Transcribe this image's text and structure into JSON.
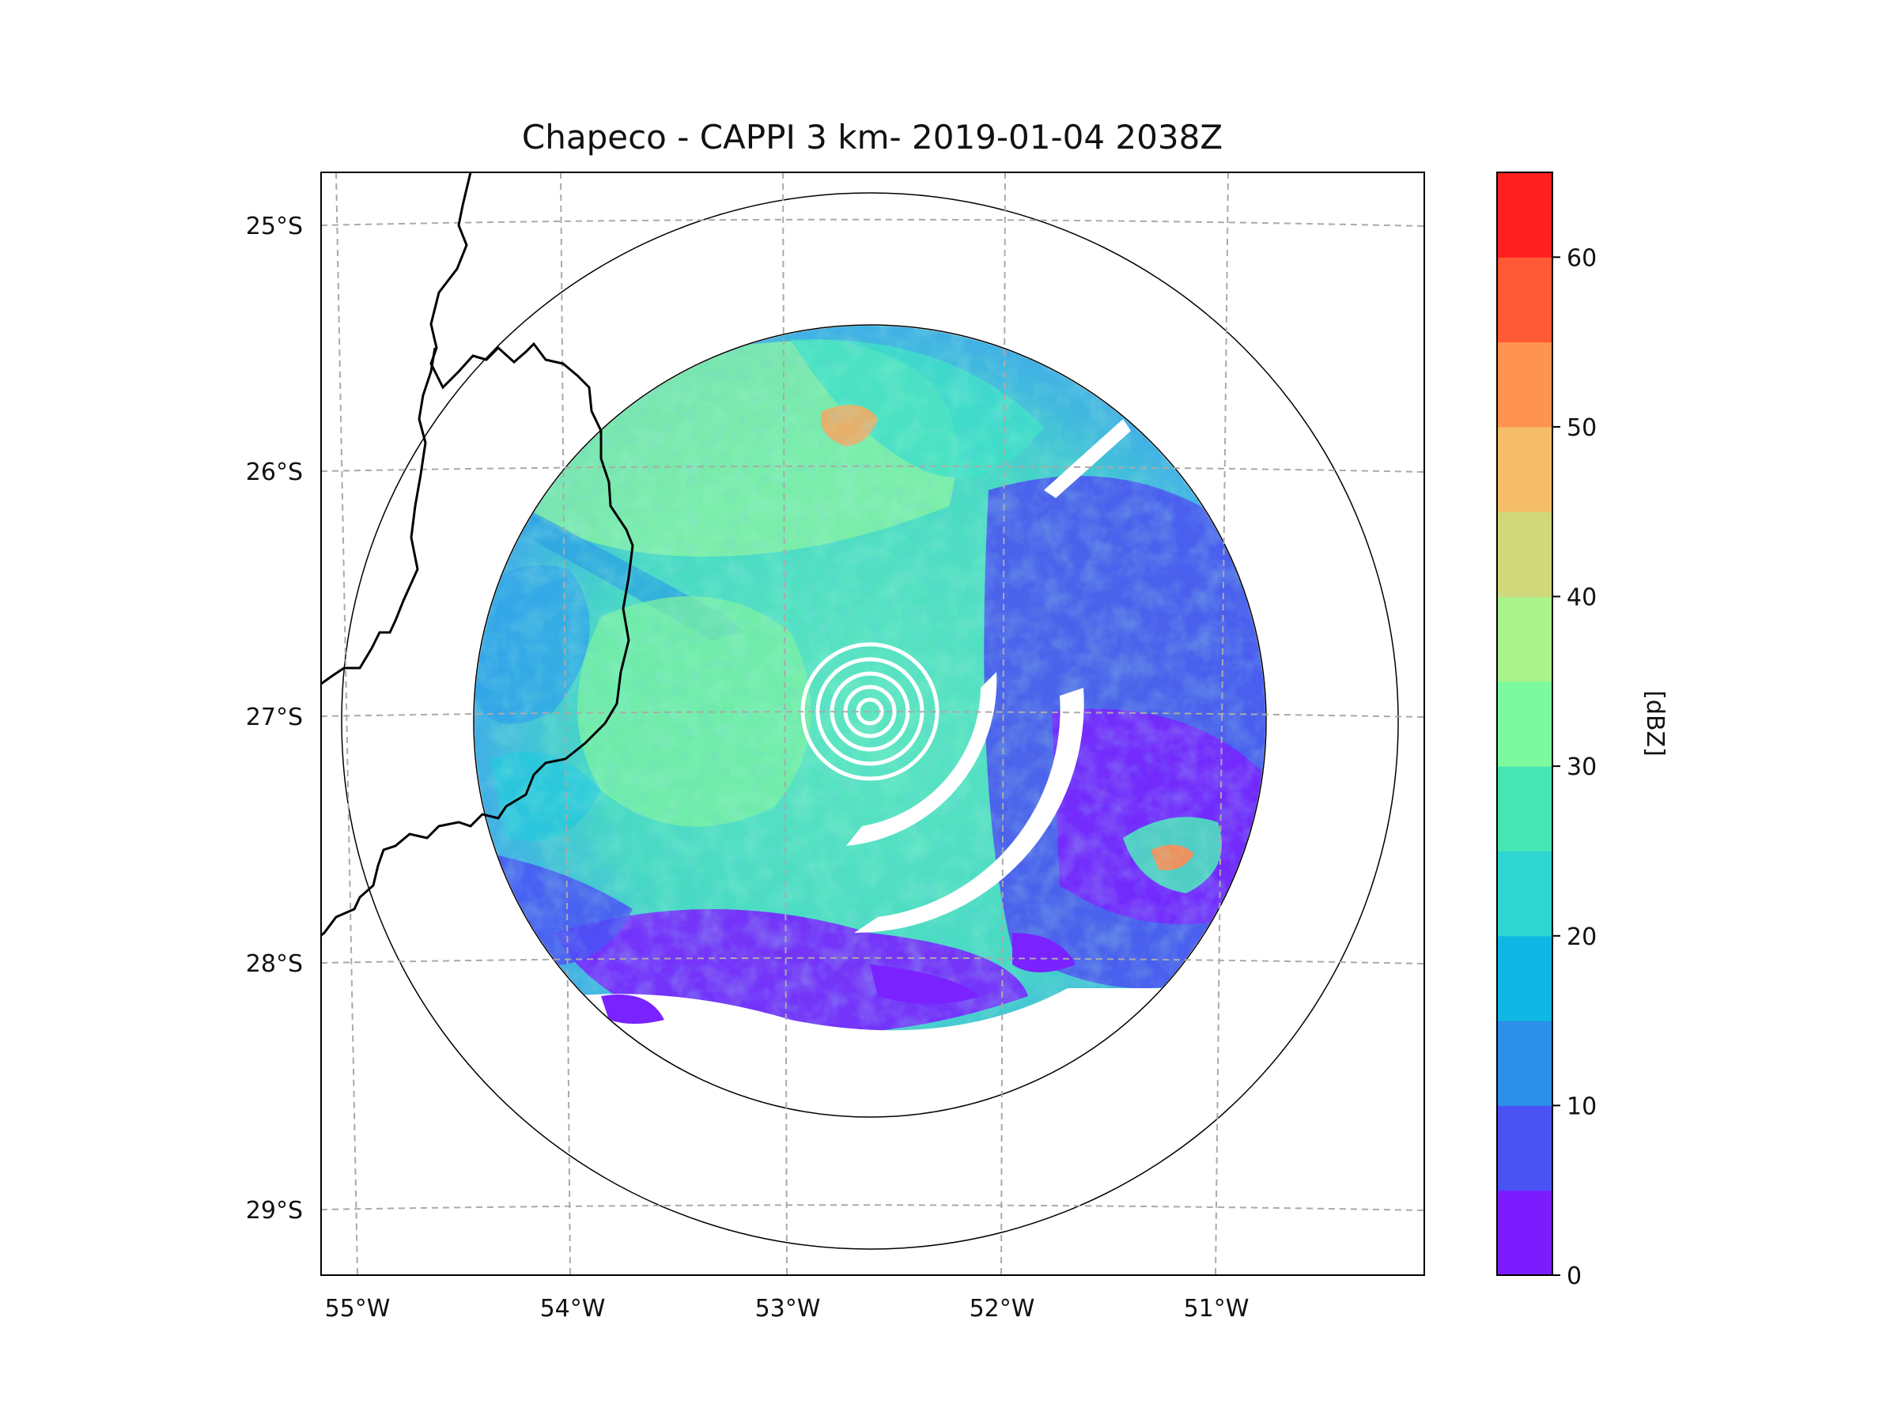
{
  "title": "Chapeco - CAPPI 3 km- 2019-01-04 2038Z",
  "map": {
    "lat_labels": [
      "25°S",
      "26°S",
      "27°S",
      "28°S",
      "29°S"
    ],
    "lon_labels": [
      "55°W",
      "54°W",
      "53°W",
      "52°W",
      "51°W"
    ],
    "gridline_style": "dashed",
    "range_rings": [
      "inner",
      "outer"
    ]
  },
  "colorbar": {
    "label": "[dBZ]",
    "tick_labels": [
      "0",
      "10",
      "20",
      "30",
      "40",
      "50",
      "60"
    ],
    "colors": [
      "#7b1cff",
      "#4a52f4",
      "#2c8fe8",
      "#0fb8e4",
      "#2fd5d0",
      "#46e6b4",
      "#7dfaa0",
      "#a9f28c",
      "#cfd87a",
      "#f5bd6a",
      "#ff9450",
      "#ff5a35",
      "#ff1f1f"
    ]
  },
  "chart_data": {
    "type": "heatmap",
    "title": "Chapeco - CAPPI 3 km- 2019-01-04 2038Z",
    "xlabel": "",
    "ylabel": "",
    "x_ticks": [
      "55°W",
      "54°W",
      "53°W",
      "52°W",
      "51°W"
    ],
    "y_ticks": [
      "25°S",
      "26°S",
      "27°S",
      "28°S",
      "29°S"
    ],
    "value_range": [
      0,
      65
    ],
    "colorbar_label": "[dBZ]",
    "colorbar_ticks": [
      0,
      10,
      20,
      30,
      40,
      50,
      60
    ]
  }
}
